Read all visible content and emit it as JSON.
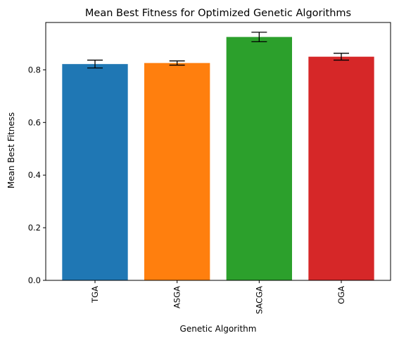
{
  "chart_data": {
    "type": "bar",
    "title": "Mean Best Fitness for Optimized Genetic Algorithms",
    "xlabel": "Genetic Algorithm",
    "ylabel": "Mean Best Fitness",
    "categories": [
      "TGA",
      "ASGA",
      "SACGA",
      "OGA"
    ],
    "values": [
      0.822,
      0.826,
      0.925,
      0.85
    ],
    "errors": [
      0.015,
      0.008,
      0.018,
      0.013
    ],
    "colors": [
      "#1f77b4",
      "#ff7f0e",
      "#2ca02c",
      "#d62728"
    ],
    "ylim": [
      0,
      0.98
    ],
    "yticks": [
      0.0,
      0.2,
      0.4,
      0.6,
      0.8
    ],
    "ytick_labels": [
      "0.0",
      "0.2",
      "0.4",
      "0.6",
      "0.8"
    ],
    "grid": false,
    "legend": "none"
  }
}
